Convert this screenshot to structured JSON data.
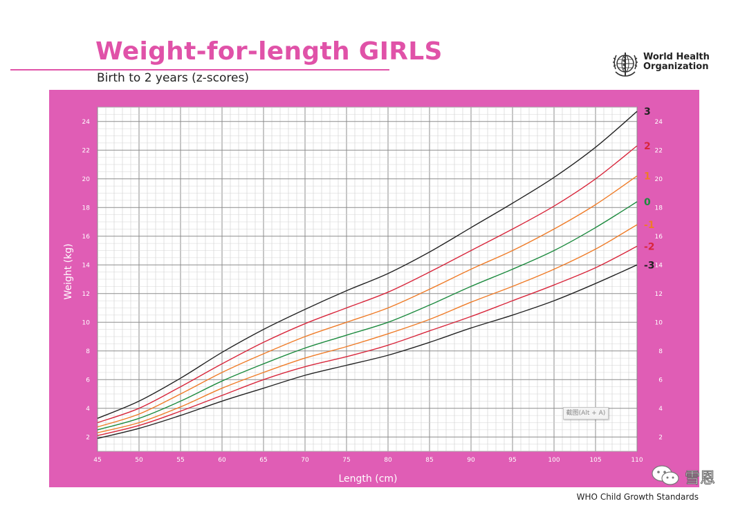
{
  "header": {
    "title": "Weight-for-length GIRLS",
    "subtitle": "Birth to 2 years (z-scores)",
    "org_line1": "World Health",
    "org_line2": "Organization"
  },
  "footer": {
    "text": "WHO Child Growth Standards"
  },
  "watermark": {
    "text": "雪恩",
    "icon": "wechat-icon"
  },
  "tooltip": {
    "text": "截图(Alt + A)"
  },
  "colors": {
    "panel": "#e05db5",
    "title": "#e052a8",
    "z3": "#222222",
    "z2": "#d8263b",
    "z1": "#ef7b27",
    "z0": "#1c8a3e"
  },
  "chart_data": {
    "type": "line",
    "xlabel": "Length (cm)",
    "ylabel": "Weight (kg)",
    "xlim": [
      45,
      110
    ],
    "ylim": [
      1,
      25
    ],
    "x_ticks": [
      45,
      50,
      55,
      60,
      65,
      70,
      75,
      80,
      85,
      90,
      95,
      100,
      105,
      110
    ],
    "y_ticks": [
      2,
      4,
      6,
      8,
      10,
      12,
      14,
      16,
      18,
      20,
      22,
      24
    ],
    "grid": true,
    "x": [
      45,
      50,
      55,
      60,
      65,
      70,
      75,
      80,
      85,
      90,
      95,
      100,
      105,
      110
    ],
    "series": [
      {
        "name": "3",
        "color": "#222222",
        "values": [
          3.3,
          4.5,
          6.1,
          7.9,
          9.5,
          10.9,
          12.2,
          13.4,
          14.9,
          16.6,
          18.3,
          20.1,
          22.2,
          24.7
        ]
      },
      {
        "name": "2",
        "color": "#d8263b",
        "values": [
          3.0,
          4.0,
          5.5,
          7.1,
          8.6,
          9.9,
          11.0,
          12.1,
          13.5,
          15.0,
          16.5,
          18.1,
          20.0,
          22.3
        ]
      },
      {
        "name": "1",
        "color": "#ef7b27",
        "values": [
          2.7,
          3.6,
          5.0,
          6.5,
          7.8,
          9.0,
          10.0,
          11.0,
          12.3,
          13.7,
          15.0,
          16.5,
          18.2,
          20.2
        ]
      },
      {
        "name": "0",
        "color": "#1c8a3e",
        "values": [
          2.5,
          3.3,
          4.5,
          5.9,
          7.1,
          8.2,
          9.1,
          10.0,
          11.2,
          12.5,
          13.7,
          15.0,
          16.6,
          18.4
        ]
      },
      {
        "name": "-1",
        "color": "#ef7b27",
        "values": [
          2.3,
          3.0,
          4.1,
          5.4,
          6.5,
          7.5,
          8.3,
          9.2,
          10.2,
          11.4,
          12.5,
          13.7,
          15.1,
          16.8
        ]
      },
      {
        "name": "-2",
        "color": "#d8263b",
        "values": [
          2.1,
          2.8,
          3.8,
          4.9,
          6.0,
          6.9,
          7.6,
          8.4,
          9.4,
          10.4,
          11.5,
          12.6,
          13.8,
          15.3
        ]
      },
      {
        "name": "-3",
        "color": "#222222",
        "values": [
          1.9,
          2.6,
          3.5,
          4.5,
          5.4,
          6.3,
          7.0,
          7.7,
          8.6,
          9.6,
          10.5,
          11.5,
          12.7,
          14.0
        ]
      }
    ]
  }
}
